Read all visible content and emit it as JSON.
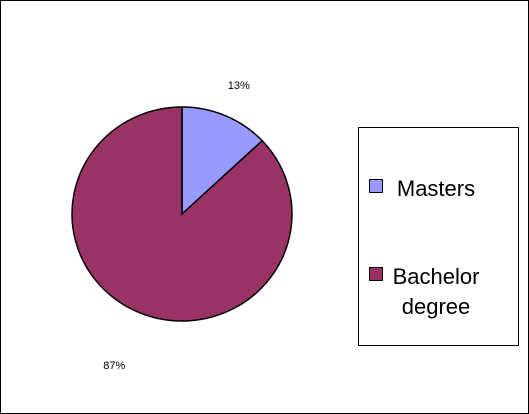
{
  "chart_data": {
    "type": "pie",
    "categories": [
      "Masters",
      "Bachelor degree"
    ],
    "values": [
      13,
      87
    ],
    "value_labels": [
      "13%",
      "87%"
    ],
    "colors": [
      "#9999ff",
      "#993366"
    ],
    "legend": "right"
  }
}
